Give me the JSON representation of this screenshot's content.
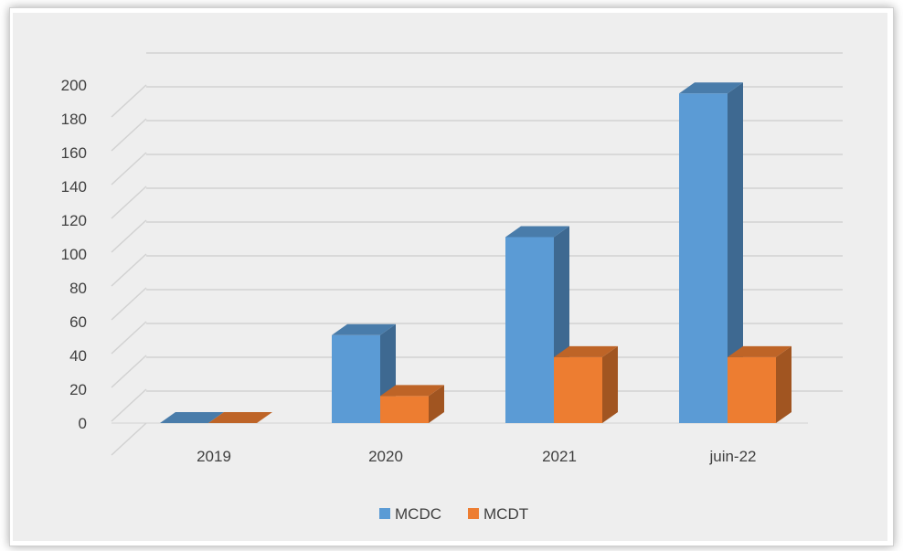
{
  "chart_data": {
    "type": "bar",
    "categories": [
      "2019",
      "2020",
      "2021",
      "juin-22"
    ],
    "series": [
      {
        "name": "MCDC",
        "values": [
          0,
          52,
          110,
          195
        ],
        "color": "#5B9BD5"
      },
      {
        "name": "MCDT",
        "values": [
          0,
          16,
          39,
          39
        ],
        "color": "#ED7D31"
      }
    ],
    "yticks": [
      "0",
      "20",
      "40",
      "60",
      "80",
      "100",
      "120",
      "140",
      "160",
      "180",
      "200"
    ],
    "ylim": [
      0,
      200
    ],
    "grid": true,
    "legend_position": "bottom",
    "three_d": true
  }
}
